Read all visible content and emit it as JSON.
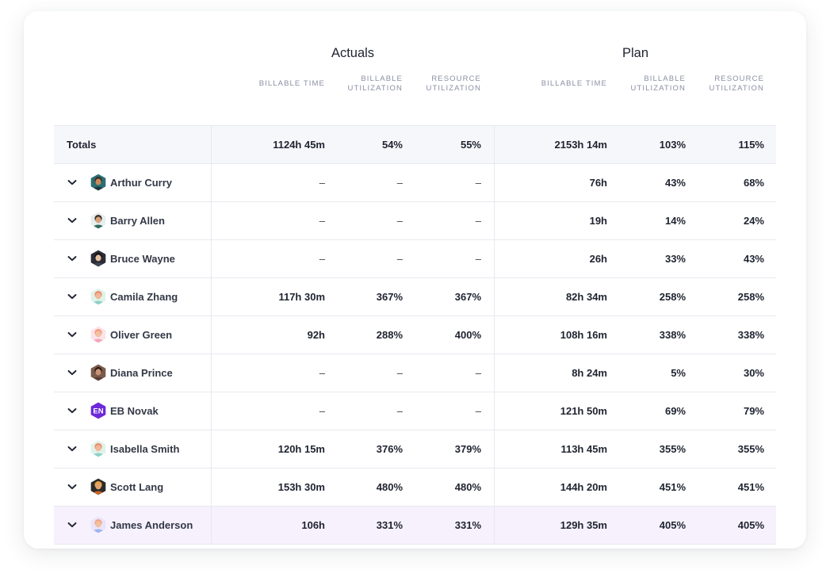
{
  "groups": {
    "actuals": "Actuals",
    "plan": "Plan"
  },
  "columns": {
    "actuals": [
      [
        "BILLABLE TIME"
      ],
      [
        "BILLABLE",
        "UTILIZATION"
      ],
      [
        "RESOURCE",
        "UTILIZATION"
      ]
    ],
    "plan": [
      [
        "BILLABLE TIME"
      ],
      [
        "BILLABLE",
        "UTILIZATION"
      ],
      [
        "RESOURCE",
        "UTILIZATION"
      ]
    ]
  },
  "totals": {
    "label": "Totals",
    "actuals": [
      "1124h 45m",
      "54%",
      "55%"
    ],
    "plan": [
      "2153h 14m",
      "103%",
      "115%"
    ]
  },
  "rows": [
    {
      "name": "Arthur Curry",
      "avatar": "avatar-teal-hex",
      "actuals": [
        "–",
        "–",
        "–"
      ],
      "plan": [
        "76h",
        "43%",
        "68%"
      ]
    },
    {
      "name": "Barry Allen",
      "avatar": "avatar-light-hex",
      "actuals": [
        "–",
        "–",
        "–"
      ],
      "plan": [
        "19h",
        "14%",
        "24%"
      ]
    },
    {
      "name": "Bruce Wayne",
      "avatar": "avatar-dark-hex",
      "actuals": [
        "–",
        "–",
        "–"
      ],
      "plan": [
        "26h",
        "33%",
        "43%"
      ]
    },
    {
      "name": "Camila Zhang",
      "avatar": "avatar-mint-hex",
      "actuals": [
        "117h 30m",
        "367%",
        "367%"
      ],
      "plan": [
        "82h 34m",
        "258%",
        "258%"
      ]
    },
    {
      "name": "Oliver Green",
      "avatar": "avatar-pink-hex",
      "actuals": [
        "92h",
        "288%",
        "400%"
      ],
      "plan": [
        "108h 16m",
        "338%",
        "338%"
      ]
    },
    {
      "name": "Diana Prince",
      "avatar": "avatar-brown-hex",
      "actuals": [
        "–",
        "–",
        "–"
      ],
      "plan": [
        "8h 24m",
        "5%",
        "30%"
      ]
    },
    {
      "name": "EB Novak",
      "avatar": "avatar-initials-hex",
      "initials": "EN",
      "actuals": [
        "–",
        "–",
        "–"
      ],
      "plan": [
        "121h 50m",
        "69%",
        "79%"
      ]
    },
    {
      "name": "Isabella Smith",
      "avatar": "avatar-mint-hex",
      "actuals": [
        "120h 15m",
        "376%",
        "379%"
      ],
      "plan": [
        "113h 45m",
        "355%",
        "355%"
      ]
    },
    {
      "name": "Scott Lang",
      "avatar": "avatar-orange-hex",
      "actuals": [
        "153h 30m",
        "480%",
        "480%"
      ],
      "plan": [
        "144h 20m",
        "451%",
        "451%"
      ]
    },
    {
      "name": "James Anderson",
      "avatar": "avatar-lavender-hex",
      "actuals": [
        "106h",
        "331%",
        "331%"
      ],
      "plan": [
        "129h 35m",
        "405%",
        "405%"
      ]
    }
  ],
  "highlight_row_index": 9,
  "colors": {
    "totals_bg": "#f6f7fa",
    "highlight_bg": "#f6f1fd",
    "initials_avatar": "#6d28d9",
    "header_text": "#8a8fa3"
  }
}
